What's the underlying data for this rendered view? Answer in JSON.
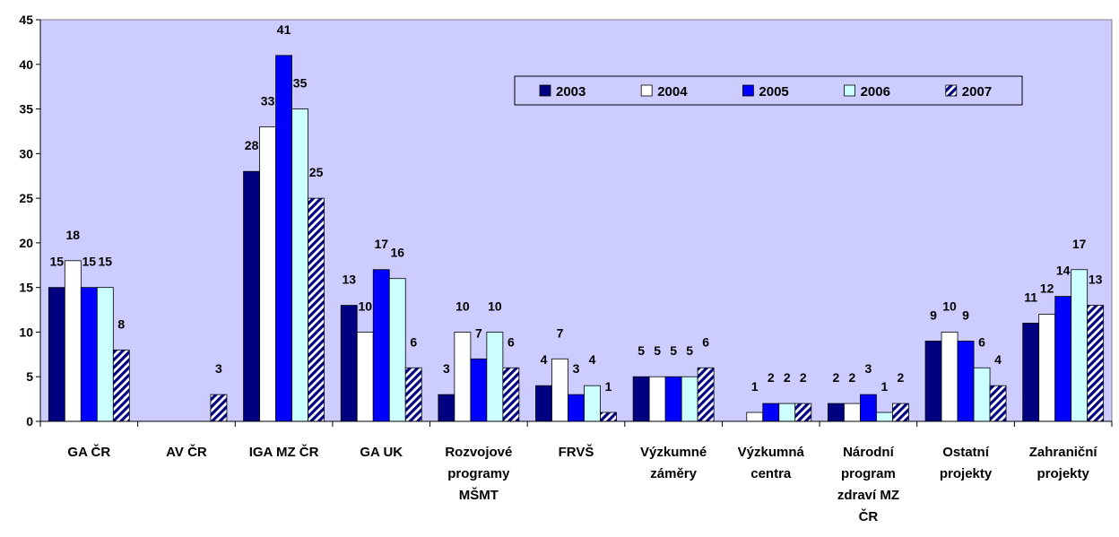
{
  "chart_data": {
    "type": "bar",
    "title": "",
    "xlabel": "",
    "ylabel": "",
    "ylim": [
      0,
      45
    ],
    "yticks": [
      0,
      5,
      10,
      15,
      20,
      25,
      30,
      35,
      40,
      45
    ],
    "grid": false,
    "legend_position": "top-right",
    "plot_background": "#ccccff",
    "categories": [
      [
        "GA ČR"
      ],
      [
        "AV ČR"
      ],
      [
        "IGA MZ ČR"
      ],
      [
        "GA UK"
      ],
      [
        "Rozvojové",
        "programy",
        "MŠMT"
      ],
      [
        "FRVŠ"
      ],
      [
        "Výzkumné",
        "záměry"
      ],
      [
        "Výzkumná",
        "centra"
      ],
      [
        "Národní",
        "program",
        "zdraví MZ",
        "ČR"
      ],
      [
        "Ostatní",
        "projekty"
      ],
      [
        "Zahraniční",
        "projekty"
      ]
    ],
    "series": [
      {
        "name": "2003",
        "color": "#000080",
        "pattern": "solid",
        "values": [
          15,
          null,
          28,
          13,
          3,
          4,
          5,
          null,
          2,
          9,
          11
        ]
      },
      {
        "name": "2004",
        "color": "#ffffff",
        "pattern": "solid",
        "values": [
          18,
          null,
          33,
          10,
          10,
          7,
          5,
          1,
          2,
          10,
          12
        ]
      },
      {
        "name": "2005",
        "color": "#0000ff",
        "pattern": "solid",
        "values": [
          15,
          null,
          41,
          17,
          7,
          3,
          5,
          2,
          3,
          9,
          14
        ]
      },
      {
        "name": "2006",
        "color": "#ccffff",
        "pattern": "solid",
        "values": [
          15,
          null,
          35,
          16,
          10,
          4,
          5,
          2,
          1,
          6,
          17
        ]
      },
      {
        "name": "2007",
        "color": "#000080",
        "pattern": "diagonal-stripes",
        "values": [
          8,
          3,
          25,
          6,
          6,
          1,
          6,
          2,
          2,
          4,
          13
        ]
      }
    ]
  }
}
